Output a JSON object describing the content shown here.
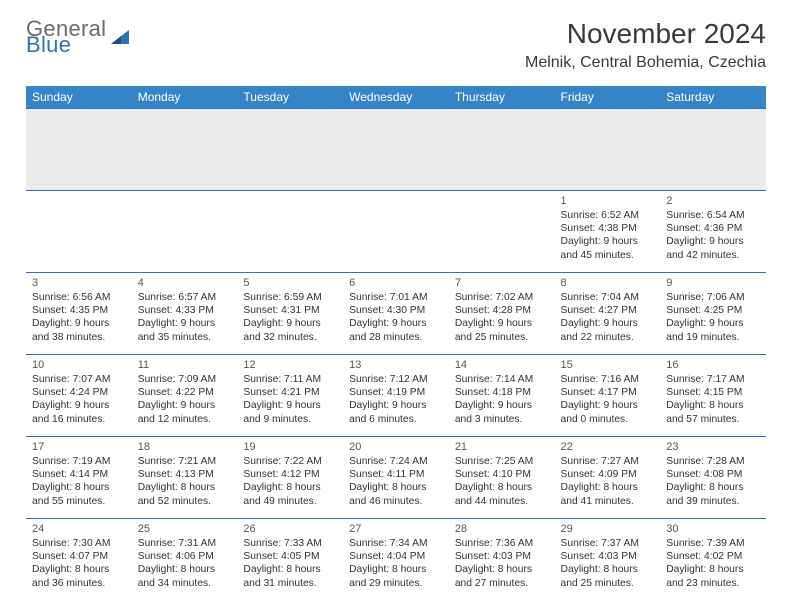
{
  "brand": {
    "word1": "General",
    "word2": "Blue"
  },
  "title": "November 2024",
  "location": "Melnik, Central Bohemia, Czechia",
  "colors": {
    "header_bg": "#3585c6",
    "header_fg": "#ffffff",
    "cell_border": "#2d72b8",
    "spacer_bg": "#eaeaea",
    "logo_grey": "#6b6b6b",
    "logo_blue": "#2d72b8",
    "body_text": "#333333"
  },
  "weekdays": [
    "Sunday",
    "Monday",
    "Tuesday",
    "Wednesday",
    "Thursday",
    "Friday",
    "Saturday"
  ],
  "weeks": [
    [
      null,
      null,
      null,
      null,
      null,
      {
        "n": "1",
        "sr": "6:52 AM",
        "ss": "4:38 PM",
        "dl": "9 hours and 45 minutes."
      },
      {
        "n": "2",
        "sr": "6:54 AM",
        "ss": "4:36 PM",
        "dl": "9 hours and 42 minutes."
      }
    ],
    [
      {
        "n": "3",
        "sr": "6:56 AM",
        "ss": "4:35 PM",
        "dl": "9 hours and 38 minutes."
      },
      {
        "n": "4",
        "sr": "6:57 AM",
        "ss": "4:33 PM",
        "dl": "9 hours and 35 minutes."
      },
      {
        "n": "5",
        "sr": "6:59 AM",
        "ss": "4:31 PM",
        "dl": "9 hours and 32 minutes."
      },
      {
        "n": "6",
        "sr": "7:01 AM",
        "ss": "4:30 PM",
        "dl": "9 hours and 28 minutes."
      },
      {
        "n": "7",
        "sr": "7:02 AM",
        "ss": "4:28 PM",
        "dl": "9 hours and 25 minutes."
      },
      {
        "n": "8",
        "sr": "7:04 AM",
        "ss": "4:27 PM",
        "dl": "9 hours and 22 minutes."
      },
      {
        "n": "9",
        "sr": "7:06 AM",
        "ss": "4:25 PM",
        "dl": "9 hours and 19 minutes."
      }
    ],
    [
      {
        "n": "10",
        "sr": "7:07 AM",
        "ss": "4:24 PM",
        "dl": "9 hours and 16 minutes."
      },
      {
        "n": "11",
        "sr": "7:09 AM",
        "ss": "4:22 PM",
        "dl": "9 hours and 12 minutes."
      },
      {
        "n": "12",
        "sr": "7:11 AM",
        "ss": "4:21 PM",
        "dl": "9 hours and 9 minutes."
      },
      {
        "n": "13",
        "sr": "7:12 AM",
        "ss": "4:19 PM",
        "dl": "9 hours and 6 minutes."
      },
      {
        "n": "14",
        "sr": "7:14 AM",
        "ss": "4:18 PM",
        "dl": "9 hours and 3 minutes."
      },
      {
        "n": "15",
        "sr": "7:16 AM",
        "ss": "4:17 PM",
        "dl": "9 hours and 0 minutes."
      },
      {
        "n": "16",
        "sr": "7:17 AM",
        "ss": "4:15 PM",
        "dl": "8 hours and 57 minutes."
      }
    ],
    [
      {
        "n": "17",
        "sr": "7:19 AM",
        "ss": "4:14 PM",
        "dl": "8 hours and 55 minutes."
      },
      {
        "n": "18",
        "sr": "7:21 AM",
        "ss": "4:13 PM",
        "dl": "8 hours and 52 minutes."
      },
      {
        "n": "19",
        "sr": "7:22 AM",
        "ss": "4:12 PM",
        "dl": "8 hours and 49 minutes."
      },
      {
        "n": "20",
        "sr": "7:24 AM",
        "ss": "4:11 PM",
        "dl": "8 hours and 46 minutes."
      },
      {
        "n": "21",
        "sr": "7:25 AM",
        "ss": "4:10 PM",
        "dl": "8 hours and 44 minutes."
      },
      {
        "n": "22",
        "sr": "7:27 AM",
        "ss": "4:09 PM",
        "dl": "8 hours and 41 minutes."
      },
      {
        "n": "23",
        "sr": "7:28 AM",
        "ss": "4:08 PM",
        "dl": "8 hours and 39 minutes."
      }
    ],
    [
      {
        "n": "24",
        "sr": "7:30 AM",
        "ss": "4:07 PM",
        "dl": "8 hours and 36 minutes."
      },
      {
        "n": "25",
        "sr": "7:31 AM",
        "ss": "4:06 PM",
        "dl": "8 hours and 34 minutes."
      },
      {
        "n": "26",
        "sr": "7:33 AM",
        "ss": "4:05 PM",
        "dl": "8 hours and 31 minutes."
      },
      {
        "n": "27",
        "sr": "7:34 AM",
        "ss": "4:04 PM",
        "dl": "8 hours and 29 minutes."
      },
      {
        "n": "28",
        "sr": "7:36 AM",
        "ss": "4:03 PM",
        "dl": "8 hours and 27 minutes."
      },
      {
        "n": "29",
        "sr": "7:37 AM",
        "ss": "4:03 PM",
        "dl": "8 hours and 25 minutes."
      },
      {
        "n": "30",
        "sr": "7:39 AM",
        "ss": "4:02 PM",
        "dl": "8 hours and 23 minutes."
      }
    ]
  ],
  "labels": {
    "sunrise": "Sunrise: ",
    "sunset": "Sunset: ",
    "daylight": "Daylight: "
  }
}
